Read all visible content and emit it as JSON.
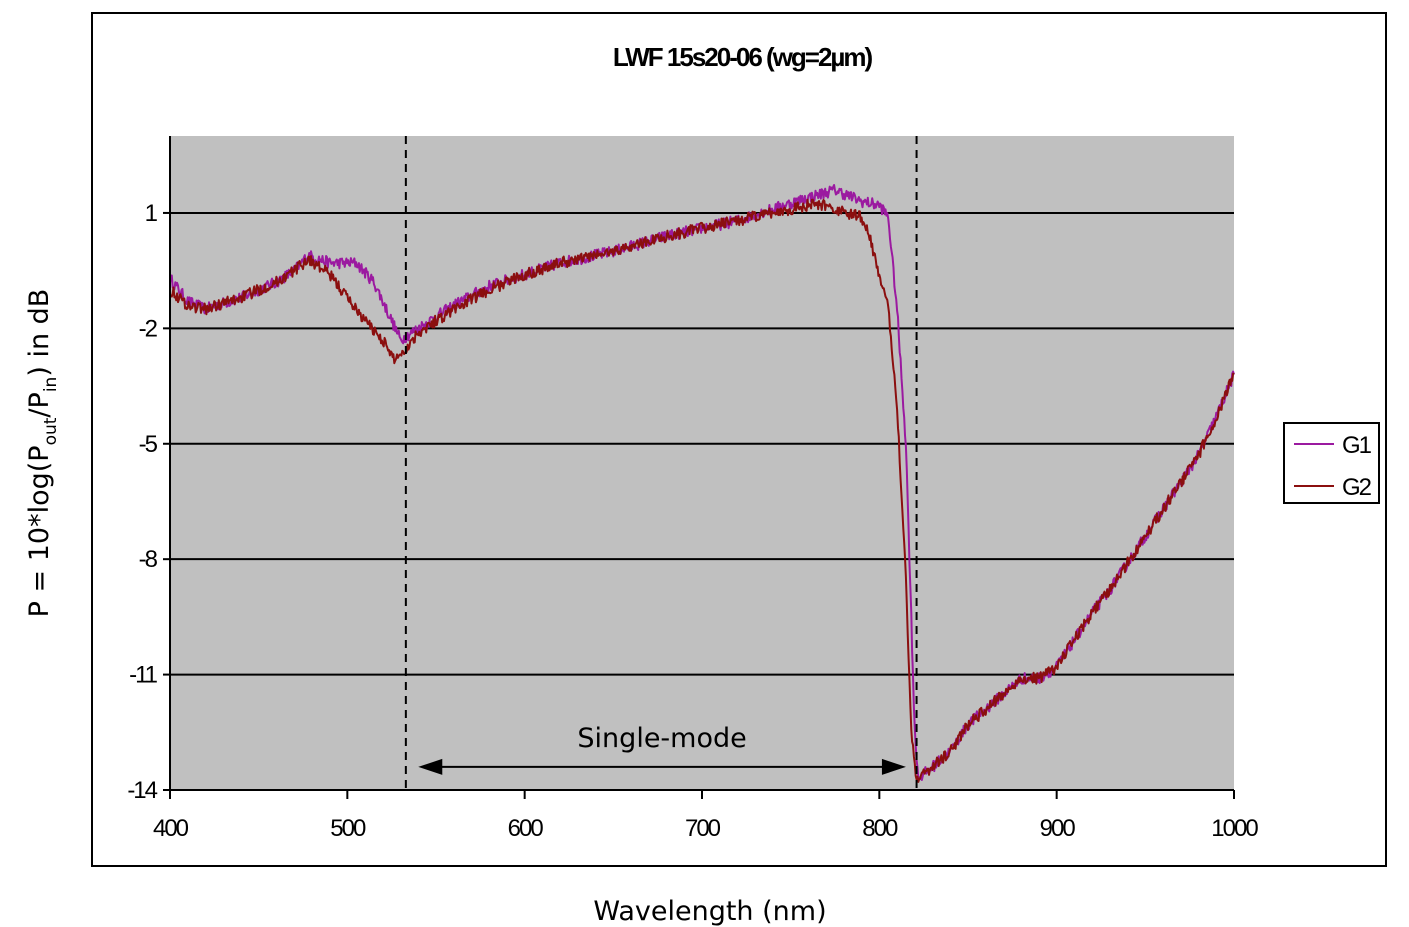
{
  "chart_data": {
    "type": "line",
    "title": "LWF 15s20-06 (wg=2µm)",
    "xlabel": "Wavelength (nm)",
    "ylabel": {
      "prefix": "P = 10*log(P",
      "sub1": "out",
      "mid": "/P",
      "sub2": "in",
      "suffix": ") in dB"
    },
    "xlim": [
      400,
      1000
    ],
    "ylim": [
      -14,
      3
    ],
    "xticks": [
      400,
      500,
      600,
      700,
      800,
      900,
      1000
    ],
    "yticks": [
      1,
      -2,
      -5,
      -8,
      -11,
      -14
    ],
    "grid": "horizontal",
    "plot_background": "#c0c0c0",
    "legend_position": "right",
    "series": [
      {
        "name": "G1",
        "color": "#9b1aa0",
        "points": [
          [
            400,
            -0.7
          ],
          [
            410,
            -1.3
          ],
          [
            420,
            -1.5
          ],
          [
            440,
            -1.2
          ],
          [
            460,
            -0.8
          ],
          [
            470,
            -0.5
          ],
          [
            478,
            -0.1
          ],
          [
            490,
            -0.3
          ],
          [
            505,
            -0.3
          ],
          [
            515,
            -0.8
          ],
          [
            522,
            -1.5
          ],
          [
            530,
            -2.3
          ],
          [
            540,
            -2.0
          ],
          [
            560,
            -1.4
          ],
          [
            580,
            -0.9
          ],
          [
            600,
            -0.6
          ],
          [
            620,
            -0.3
          ],
          [
            650,
            0.0
          ],
          [
            680,
            0.4
          ],
          [
            700,
            0.6
          ],
          [
            720,
            0.8
          ],
          [
            740,
            1.1
          ],
          [
            760,
            1.4
          ],
          [
            775,
            1.6
          ],
          [
            790,
            1.3
          ],
          [
            800,
            1.2
          ],
          [
            805,
            0.9
          ],
          [
            810,
            -1.5
          ],
          [
            815,
            -5.0
          ],
          [
            818,
            -9.5
          ],
          [
            820,
            -12.5
          ],
          [
            822,
            -13.7
          ],
          [
            830,
            -13.4
          ],
          [
            840,
            -13.0
          ],
          [
            850,
            -12.3
          ],
          [
            860,
            -11.9
          ],
          [
            870,
            -11.5
          ],
          [
            880,
            -11.1
          ],
          [
            890,
            -11.1
          ],
          [
            900,
            -10.8
          ],
          [
            910,
            -10.1
          ],
          [
            920,
            -9.4
          ],
          [
            930,
            -8.8
          ],
          [
            940,
            -8.1
          ],
          [
            950,
            -7.4
          ],
          [
            960,
            -6.7
          ],
          [
            970,
            -6.0
          ],
          [
            980,
            -5.3
          ],
          [
            990,
            -4.3
          ],
          [
            1000,
            -3.2
          ]
        ],
        "noise": 0.15
      },
      {
        "name": "G2",
        "color": "#8b0f0f",
        "points": [
          [
            400,
            -1.0
          ],
          [
            410,
            -1.4
          ],
          [
            420,
            -1.5
          ],
          [
            440,
            -1.2
          ],
          [
            460,
            -0.8
          ],
          [
            470,
            -0.5
          ],
          [
            478,
            -0.2
          ],
          [
            490,
            -0.6
          ],
          [
            500,
            -1.2
          ],
          [
            510,
            -1.8
          ],
          [
            520,
            -2.3
          ],
          [
            526,
            -2.8
          ],
          [
            532,
            -2.6
          ],
          [
            540,
            -2.1
          ],
          [
            560,
            -1.5
          ],
          [
            580,
            -1.0
          ],
          [
            600,
            -0.6
          ],
          [
            620,
            -0.3
          ],
          [
            650,
            0.0
          ],
          [
            680,
            0.4
          ],
          [
            700,
            0.6
          ],
          [
            720,
            0.8
          ],
          [
            740,
            1.0
          ],
          [
            760,
            1.2
          ],
          [
            770,
            1.2
          ],
          [
            780,
            1.0
          ],
          [
            790,
            0.9
          ],
          [
            795,
            0.3
          ],
          [
            800,
            -0.6
          ],
          [
            805,
            -1.5
          ],
          [
            810,
            -4.0
          ],
          [
            815,
            -8.5
          ],
          [
            818,
            -12.5
          ],
          [
            821,
            -13.7
          ],
          [
            830,
            -13.4
          ],
          [
            840,
            -13.0
          ],
          [
            850,
            -12.3
          ],
          [
            860,
            -11.9
          ],
          [
            870,
            -11.5
          ],
          [
            880,
            -11.1
          ],
          [
            890,
            -11.1
          ],
          [
            900,
            -10.8
          ],
          [
            910,
            -10.1
          ],
          [
            920,
            -9.4
          ],
          [
            930,
            -8.8
          ],
          [
            940,
            -8.1
          ],
          [
            950,
            -7.4
          ],
          [
            960,
            -6.7
          ],
          [
            970,
            -6.0
          ],
          [
            980,
            -5.3
          ],
          [
            990,
            -4.3
          ],
          [
            1000,
            -3.2
          ]
        ],
        "noise": 0.15
      }
    ],
    "annotations": {
      "dashed_lines_x": [
        533,
        821
      ],
      "single_mode": {
        "text": "Single-mode",
        "x_from": 540,
        "x_to": 815,
        "y": -13.4
      }
    }
  }
}
